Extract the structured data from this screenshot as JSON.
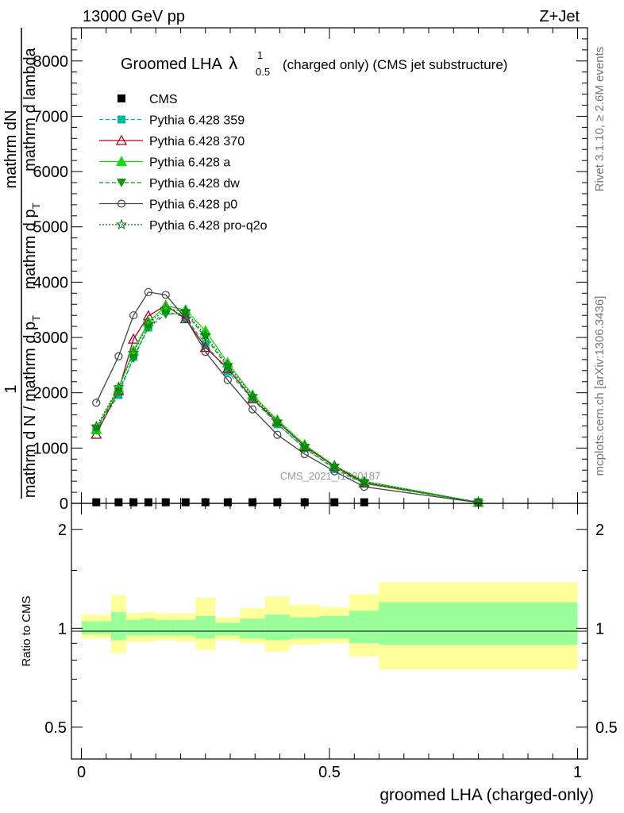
{
  "header": {
    "left": "13000 GeV pp",
    "right": "Z+Jet"
  },
  "side_text": {
    "rivet": "Rivet 3.1.10, ≥ 2.6M events",
    "mcplots": "mcplots.cern.ch [arXiv:1306.3436]"
  },
  "watermark": "CMS_2021_I1920187",
  "colors": {
    "cms": "#000000",
    "p359": "#00bb99",
    "p370": "#aa0022",
    "pa": "#11dd11",
    "pdw": "#119911",
    "pp0": "#444444",
    "pq2o": "#117711",
    "band_inner": "#99ff99",
    "band_outer": "#ffff99"
  },
  "chart_data": [
    {
      "type": "line",
      "title": "Groomed LHA",
      "title_symbol": "λ",
      "title_sup": "1",
      "title_sub": "0.5",
      "title_suffix": "(charged only) (CMS jet substructure)",
      "ylabel_numerator_top": "1",
      "ylabel_numerator": "mathrm dN",
      "ylabel_denominator_a": "mathrm d N / mathrm d p",
      "ylabel_denominator_a_sub": "T",
      "ylabel_denominator_b": "mathrm d p",
      "ylabel_denominator_b_sub": "T",
      "ylabel_denominator_c": "mathrm d lambda",
      "ylim": [
        0,
        8600
      ],
      "xlim": [
        -0.02,
        1.02
      ],
      "yticks": [
        {
          "v": 0,
          "label": "0"
        },
        {
          "v": 1000,
          "label": "1000"
        },
        {
          "v": 2000,
          "label": "2000"
        },
        {
          "v": 3000,
          "label": "3000"
        },
        {
          "v": 4000,
          "label": "4000"
        },
        {
          "v": 5000,
          "label": "5000"
        },
        {
          "v": 6000,
          "label": "6000"
        },
        {
          "v": 7000,
          "label": "7000"
        },
        {
          "v": 8000,
          "label": "8000"
        }
      ],
      "legend_position": "top-left",
      "series": [
        {
          "name": "CMS",
          "key": "cms",
          "marker": "square",
          "line": "none",
          "x": [
            0.03,
            0.075,
            0.105,
            0.135,
            0.17,
            0.21,
            0.25,
            0.295,
            0.345,
            0.395,
            0.45,
            0.51,
            0.57
          ],
          "y": [
            20,
            20,
            20,
            20,
            20,
            20,
            20,
            20,
            20,
            20,
            20,
            20,
            20
          ]
        },
        {
          "name": "Pythia 6.428 359",
          "key": "p359",
          "marker": "square",
          "line": "dashed",
          "x": [
            0.03,
            0.075,
            0.105,
            0.135,
            0.17,
            0.21,
            0.25,
            0.295,
            0.345,
            0.395,
            0.45,
            0.51,
            0.57,
            0.8
          ],
          "y": [
            1320,
            1960,
            2650,
            3180,
            3480,
            3360,
            2880,
            2380,
            1880,
            1430,
            1000,
            620,
            360,
            20
          ]
        },
        {
          "name": "Pythia 6.428 370",
          "key": "p370",
          "marker": "triangle-open",
          "line": "solid",
          "x": [
            0.03,
            0.075,
            0.105,
            0.135,
            0.17,
            0.21,
            0.25,
            0.295,
            0.345,
            0.395,
            0.45,
            0.51,
            0.57,
            0.8
          ],
          "y": [
            1250,
            2040,
            2970,
            3390,
            3580,
            3340,
            2820,
            2440,
            1890,
            1480,
            1030,
            670,
            370,
            20
          ]
        },
        {
          "name": "Pythia 6.428 a",
          "key": "pa",
          "marker": "triangle",
          "line": "solid",
          "x": [
            0.03,
            0.075,
            0.105,
            0.135,
            0.17,
            0.21,
            0.25,
            0.295,
            0.345,
            0.395,
            0.45,
            0.51,
            0.57,
            0.8
          ],
          "y": [
            1340,
            2080,
            2760,
            3280,
            3570,
            3500,
            3120,
            2540,
            1960,
            1510,
            1060,
            680,
            400,
            20
          ]
        },
        {
          "name": "Pythia 6.428 dw",
          "key": "pdw",
          "marker": "triangle-down",
          "line": "dashed",
          "x": [
            0.03,
            0.075,
            0.105,
            0.135,
            0.17,
            0.21,
            0.25,
            0.295,
            0.345,
            0.395,
            0.45,
            0.51,
            0.57,
            0.8
          ],
          "y": [
            1350,
            2020,
            2620,
            3180,
            3420,
            3440,
            3000,
            2460,
            1900,
            1440,
            990,
            640,
            360,
            20
          ]
        },
        {
          "name": "Pythia 6.428 p0",
          "key": "pp0",
          "marker": "circle-open",
          "line": "solid",
          "x": [
            0.03,
            0.075,
            0.105,
            0.135,
            0.17,
            0.21,
            0.25,
            0.295,
            0.345,
            0.395,
            0.45,
            0.51,
            0.57,
            0.8
          ],
          "y": [
            1820,
            2660,
            3400,
            3820,
            3770,
            3350,
            2740,
            2230,
            1700,
            1240,
            890,
            580,
            300,
            15
          ]
        },
        {
          "name": "Pythia 6.428 pro-q2o",
          "key": "pq2o",
          "marker": "star",
          "line": "dotted",
          "x": [
            0.03,
            0.075,
            0.105,
            0.135,
            0.17,
            0.21,
            0.25,
            0.295,
            0.345,
            0.395,
            0.45,
            0.51,
            0.57,
            0.8
          ],
          "y": [
            1390,
            2100,
            2720,
            3250,
            3520,
            3470,
            3040,
            2500,
            1940,
            1480,
            1040,
            680,
            390,
            20
          ]
        }
      ]
    },
    {
      "type": "area",
      "xlabel": "groomed LHA (charged-only)",
      "ylabel": "Ratio to CMS",
      "xlim": [
        -0.02,
        1.02
      ],
      "ylim": [
        0.4,
        2.4
      ],
      "y_scale": "log",
      "yticks": [
        {
          "v": 0.5,
          "label": "0.5"
        },
        {
          "v": 1,
          "label": "1"
        },
        {
          "v": 2,
          "label": "2"
        }
      ],
      "xticks": [
        {
          "v": 0,
          "label": "0"
        },
        {
          "v": 0.5,
          "label": "0.5"
        },
        {
          "v": 1,
          "label": "1"
        }
      ],
      "bins": [
        0.0,
        0.06,
        0.09,
        0.12,
        0.15,
        0.19,
        0.23,
        0.27,
        0.32,
        0.37,
        0.42,
        0.48,
        0.54,
        0.6,
        1.0
      ],
      "inner_hi": [
        1.05,
        1.12,
        1.06,
        1.07,
        1.06,
        1.06,
        1.09,
        1.04,
        1.07,
        1.1,
        1.08,
        1.09,
        1.13,
        1.2
      ],
      "inner_lo": [
        0.96,
        0.92,
        0.95,
        0.95,
        0.95,
        0.95,
        0.93,
        0.95,
        0.93,
        0.92,
        0.93,
        0.93,
        0.9,
        0.89
      ],
      "outer_hi": [
        1.1,
        1.26,
        1.11,
        1.12,
        1.11,
        1.11,
        1.24,
        1.08,
        1.15,
        1.25,
        1.18,
        1.16,
        1.27,
        1.38
      ],
      "outer_lo": [
        0.93,
        0.84,
        0.91,
        0.91,
        0.92,
        0.91,
        0.86,
        0.92,
        0.9,
        0.85,
        0.89,
        0.9,
        0.82,
        0.75
      ]
    }
  ]
}
